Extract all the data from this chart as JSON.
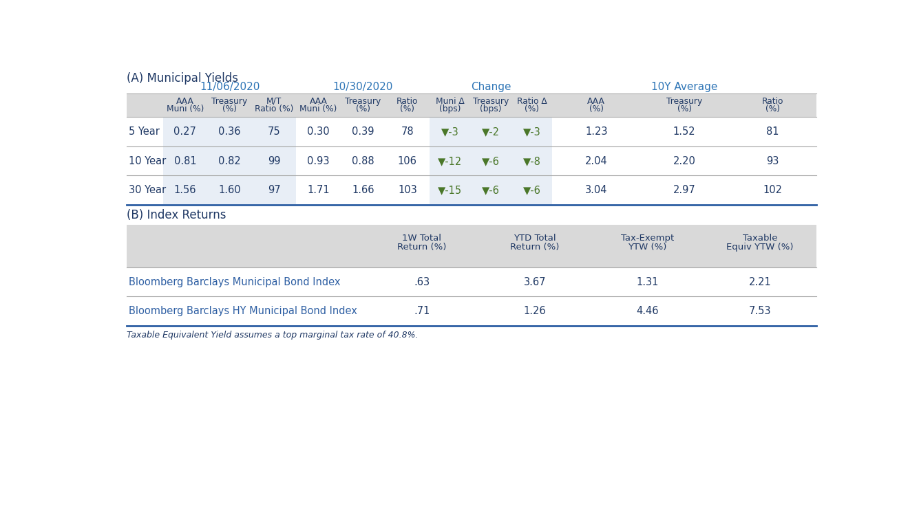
{
  "title_a": "(A) Municipal Yields",
  "title_b": "(B) Index Returns",
  "footnote": "Taxable Equivalent Yield assumes a top marginal tax rate of 40.8%.",
  "date1": "11/06/2020",
  "date2": "10/30/2020",
  "change_label": "Change",
  "avg_label": "10Y Average",
  "col_headers_line1": [
    "AAA",
    "Treasury",
    "M/T",
    "AAA",
    "Treasury",
    "Ratio",
    "Muni Δ",
    "Treasury",
    "Ratio Δ",
    "AAA",
    "Treasury",
    "Ratio"
  ],
  "col_headers_line2": [
    "Muni (%)",
    "(%)",
    "Ratio (%)",
    "Muni (%)",
    "(%)",
    "(%)",
    "(bps)",
    "(bps)",
    "(%)",
    "(%)",
    "(%)",
    "(%)"
  ],
  "row_labels": [
    "5 Year",
    "10 Year",
    "30 Year"
  ],
  "table_data": [
    [
      "0.27",
      "0.36",
      "75",
      "0.30",
      "0.39",
      "78",
      "▼-3",
      "▼-2",
      "▼-3",
      "1.23",
      "1.52",
      "81"
    ],
    [
      "0.81",
      "0.82",
      "99",
      "0.93",
      "0.88",
      "106",
      "▼-12",
      "▼-6",
      "▼-8",
      "2.04",
      "2.20",
      "93"
    ],
    [
      "1.56",
      "1.60",
      "97",
      "1.71",
      "1.66",
      "103",
      "▼-15",
      "▼-6",
      "▼-6",
      "3.04",
      "2.97",
      "102"
    ]
  ],
  "change_col_indices": [
    6,
    7,
    8
  ],
  "index_col_headers_line1": [
    "1W Total",
    "YTD Total",
    "Tax-Exempt",
    "Taxable"
  ],
  "index_col_headers_line2": [
    "Return (%)",
    "Return (%)",
    "YTW (%)",
    "Equiv YTW (%)"
  ],
  "index_row_labels": [
    "Bloomberg Barclays Municipal Bond Index",
    "Bloomberg Barclays HY Municipal Bond Index"
  ],
  "index_data": [
    [
      ".63",
      "3.67",
      "1.31",
      "2.21"
    ],
    [
      ".71",
      "1.26",
      "4.46",
      "7.53"
    ]
  ],
  "dark_blue": "#1F3864",
  "medium_blue": "#2E5FA3",
  "header_blue": "#2E75B6",
  "green": "#4A7729",
  "bg_gray": "#D9D9D9",
  "change_bg": "#D6E0EE",
  "row_date_bg": "#E8EEF6",
  "white": "#FFFFFF",
  "sep_line": "#AAAAAA",
  "bold_line": "#2E5FA3"
}
